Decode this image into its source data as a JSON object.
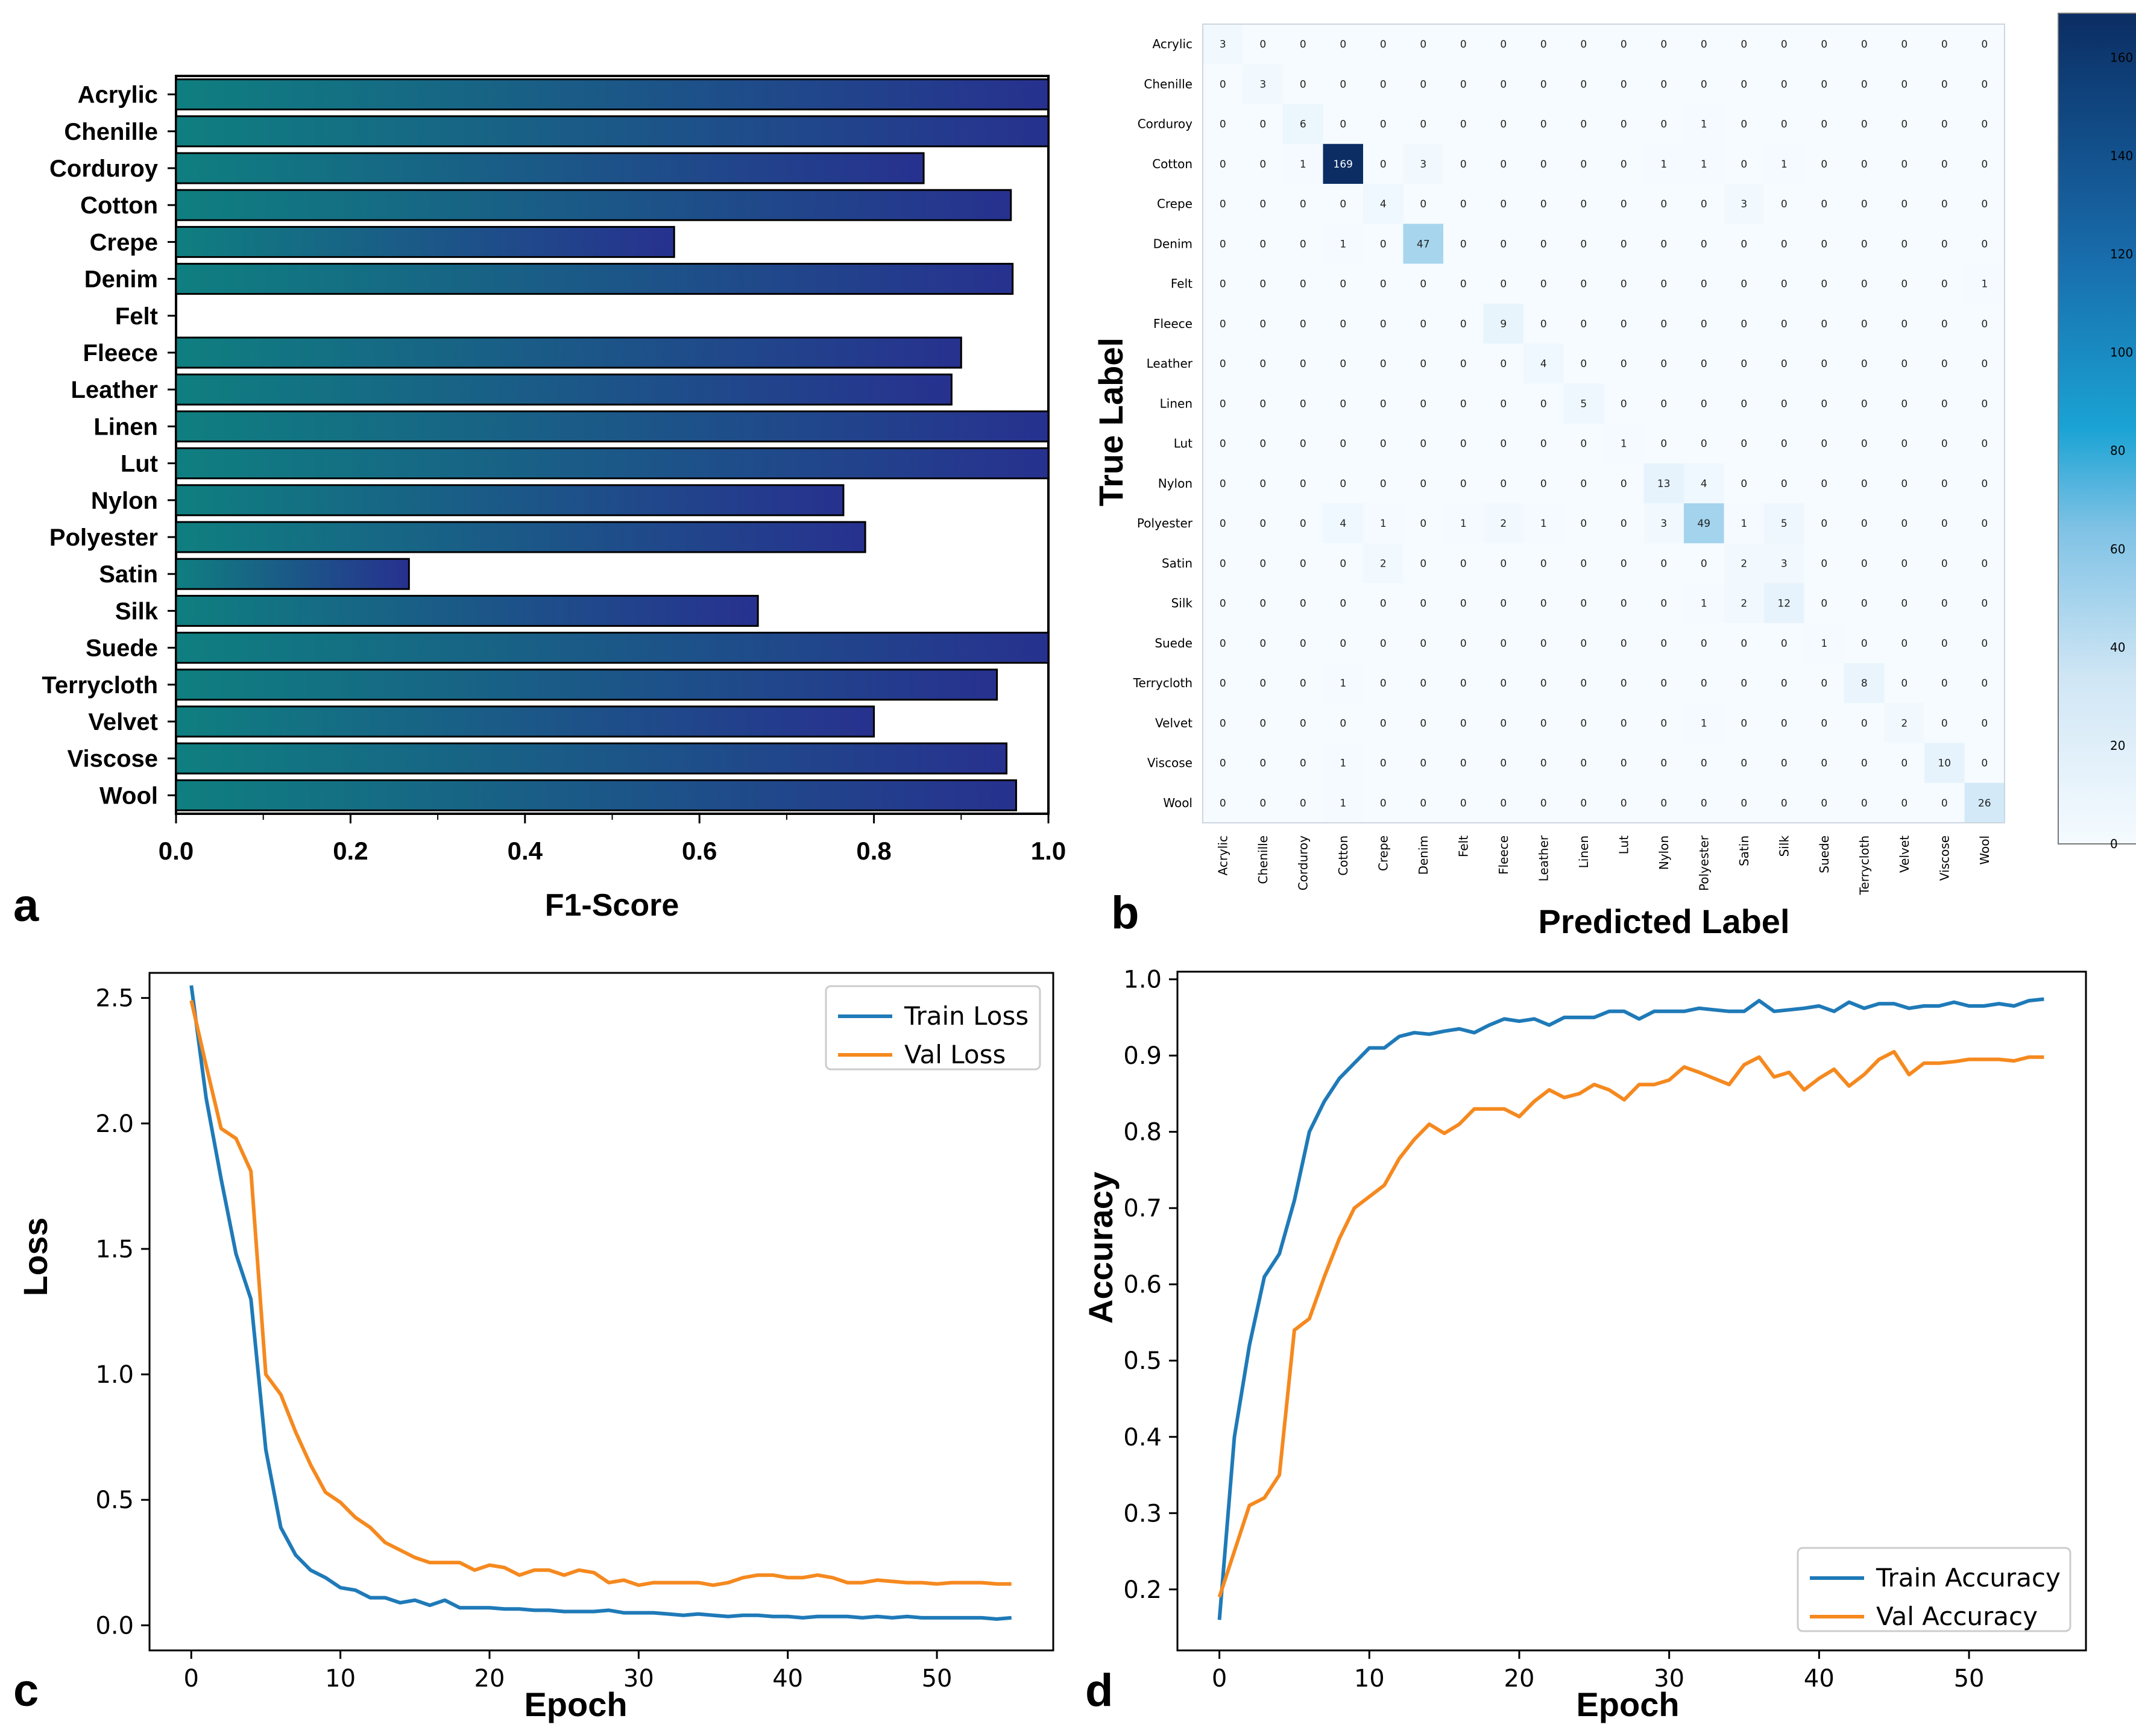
{
  "panel_letters": [
    "a",
    "b",
    "c",
    "d"
  ],
  "colors": {
    "bar_start": "#0f7f80",
    "bar_end": "#27318f",
    "train": "#1f7ab8",
    "val": "#f5891f",
    "cm_low": "#f5fbff",
    "cm_mid": "#1aa3d4",
    "cm_high": "#0b2d63"
  },
  "chart_data": [
    {
      "id": "a",
      "type": "bar",
      "orientation": "horizontal",
      "title": "",
      "xlabel": "F1-Score",
      "ylabel": "",
      "xlim": [
        0,
        1.0
      ],
      "xticks": [
        "0.0",
        "0.2",
        "0.4",
        "0.6",
        "0.8",
        "1.0"
      ],
      "categories": [
        "Acrylic",
        "Chenille",
        "Corduroy",
        "Cotton",
        "Crepe",
        "Denim",
        "Felt",
        "Fleece",
        "Leather",
        "Linen",
        "Lut",
        "Nylon",
        "Polyester",
        "Satin",
        "Silk",
        "Suede",
        "Terrycloth",
        "Velvet",
        "Viscose",
        "Wool"
      ],
      "values": [
        1.0,
        1.0,
        0.857,
        0.957,
        0.571,
        0.959,
        0.0,
        0.9,
        0.889,
        1.0,
        1.0,
        0.765,
        0.79,
        0.267,
        0.667,
        1.0,
        0.941,
        0.8,
        0.952,
        0.963
      ]
    },
    {
      "id": "b",
      "type": "heatmap",
      "title": "",
      "xlabel": "Predicted Label",
      "ylabel": "True Label",
      "labels": [
        "Acrylic",
        "Chenille",
        "Corduroy",
        "Cotton",
        "Crepe",
        "Denim",
        "Felt",
        "Fleece",
        "Leather",
        "Linen",
        "Lut",
        "Nylon",
        "Polyester",
        "Satin",
        "Silk",
        "Suede",
        "Terrycloth",
        "Velvet",
        "Viscose",
        "Wool"
      ],
      "col_labels": [
        "Acrylic",
        "Chenille",
        "Corduroy",
        "Cotton",
        "Crepe",
        "Denim",
        "Felt",
        "Fleece",
        "Leather",
        "Linen",
        "Lut",
        "Nylon",
        "Polyester",
        "Satin",
        "Silk",
        "Suede",
        "Terrycloth",
        "Velvet",
        "Viscose",
        "Wool"
      ],
      "matrix": [
        [
          3,
          0,
          0,
          0,
          0,
          0,
          0,
          0,
          0,
          0,
          0,
          0,
          0,
          0,
          0,
          0,
          0,
          0,
          0,
          0
        ],
        [
          0,
          3,
          0,
          0,
          0,
          0,
          0,
          0,
          0,
          0,
          0,
          0,
          0,
          0,
          0,
          0,
          0,
          0,
          0,
          0
        ],
        [
          0,
          0,
          6,
          0,
          0,
          0,
          0,
          0,
          0,
          0,
          0,
          0,
          1,
          0,
          0,
          0,
          0,
          0,
          0,
          0
        ],
        [
          0,
          0,
          1,
          169,
          0,
          3,
          0,
          0,
          0,
          0,
          0,
          1,
          1,
          0,
          1,
          0,
          0,
          0,
          0,
          0
        ],
        [
          0,
          0,
          0,
          0,
          4,
          0,
          0,
          0,
          0,
          0,
          0,
          0,
          0,
          3,
          0,
          0,
          0,
          0,
          0,
          0
        ],
        [
          0,
          0,
          0,
          1,
          0,
          47,
          0,
          0,
          0,
          0,
          0,
          0,
          0,
          0,
          0,
          0,
          0,
          0,
          0,
          0
        ],
        [
          0,
          0,
          0,
          0,
          0,
          0,
          0,
          0,
          0,
          0,
          0,
          0,
          0,
          0,
          0,
          0,
          0,
          0,
          0,
          1
        ],
        [
          0,
          0,
          0,
          0,
          0,
          0,
          0,
          9,
          0,
          0,
          0,
          0,
          0,
          0,
          0,
          0,
          0,
          0,
          0,
          0
        ],
        [
          0,
          0,
          0,
          0,
          0,
          0,
          0,
          0,
          4,
          0,
          0,
          0,
          0,
          0,
          0,
          0,
          0,
          0,
          0,
          0
        ],
        [
          0,
          0,
          0,
          0,
          0,
          0,
          0,
          0,
          0,
          5,
          0,
          0,
          0,
          0,
          0,
          0,
          0,
          0,
          0,
          0
        ],
        [
          0,
          0,
          0,
          0,
          0,
          0,
          0,
          0,
          0,
          0,
          1,
          0,
          0,
          0,
          0,
          0,
          0,
          0,
          0,
          0
        ],
        [
          0,
          0,
          0,
          0,
          0,
          0,
          0,
          0,
          0,
          0,
          0,
          13,
          4,
          0,
          0,
          0,
          0,
          0,
          0,
          0
        ],
        [
          0,
          0,
          0,
          4,
          1,
          0,
          1,
          2,
          1,
          0,
          0,
          3,
          49,
          1,
          5,
          0,
          0,
          0,
          0,
          0
        ],
        [
          0,
          0,
          0,
          0,
          2,
          0,
          0,
          0,
          0,
          0,
          0,
          0,
          0,
          2,
          3,
          0,
          0,
          0,
          0,
          0
        ],
        [
          0,
          0,
          0,
          0,
          0,
          0,
          0,
          0,
          0,
          0,
          0,
          0,
          1,
          2,
          12,
          0,
          0,
          0,
          0,
          0
        ],
        [
          0,
          0,
          0,
          0,
          0,
          0,
          0,
          0,
          0,
          0,
          0,
          0,
          0,
          0,
          0,
          1,
          0,
          0,
          0,
          0
        ],
        [
          0,
          0,
          0,
          1,
          0,
          0,
          0,
          0,
          0,
          0,
          0,
          0,
          0,
          0,
          0,
          0,
          8,
          0,
          0,
          0
        ],
        [
          0,
          0,
          0,
          0,
          0,
          0,
          0,
          0,
          0,
          0,
          0,
          0,
          1,
          0,
          0,
          0,
          0,
          2,
          0,
          0
        ],
        [
          0,
          0,
          0,
          1,
          0,
          0,
          0,
          0,
          0,
          0,
          0,
          0,
          0,
          0,
          0,
          0,
          0,
          0,
          10,
          0
        ],
        [
          0,
          0,
          0,
          1,
          0,
          0,
          0,
          0,
          0,
          0,
          0,
          0,
          0,
          0,
          0,
          0,
          0,
          0,
          0,
          26
        ]
      ],
      "colorbar": {
        "range": [
          0,
          169
        ],
        "ticks": [
          0,
          20,
          40,
          60,
          80,
          100,
          120,
          140,
          160
        ]
      }
    },
    {
      "id": "c",
      "type": "line",
      "title": "",
      "xlabel": "Epoch",
      "ylabel": "Loss",
      "xlim": [
        -2.8,
        57.8
      ],
      "ylim": [
        -0.1,
        2.6
      ],
      "xticks": [
        0,
        10,
        20,
        30,
        40,
        50
      ],
      "yticks": [
        "0.0",
        "0.5",
        "1.0",
        "1.5",
        "2.0",
        "2.5"
      ],
      "legend": "top-right",
      "series": [
        {
          "name": "Train Loss",
          "color": "#1f7ab8",
          "values": [
            2.55,
            2.1,
            1.78,
            1.48,
            1.3,
            0.7,
            0.39,
            0.28,
            0.22,
            0.19,
            0.15,
            0.14,
            0.11,
            0.11,
            0.09,
            0.1,
            0.08,
            0.1,
            0.07,
            0.07,
            0.07,
            0.065,
            0.065,
            0.06,
            0.06,
            0.055,
            0.055,
            0.055,
            0.06,
            0.05,
            0.05,
            0.05,
            0.045,
            0.04,
            0.045,
            0.04,
            0.035,
            0.04,
            0.04,
            0.035,
            0.035,
            0.03,
            0.035,
            0.035,
            0.035,
            0.03,
            0.035,
            0.03,
            0.035,
            0.03,
            0.03,
            0.03,
            0.03,
            0.03,
            0.025,
            0.03
          ]
        },
        {
          "name": "Val Loss",
          "color": "#f5891f",
          "values": [
            2.49,
            2.23,
            1.98,
            1.94,
            1.81,
            1.0,
            0.92,
            0.77,
            0.64,
            0.53,
            0.49,
            0.43,
            0.39,
            0.33,
            0.3,
            0.27,
            0.25,
            0.25,
            0.25,
            0.22,
            0.24,
            0.23,
            0.2,
            0.22,
            0.22,
            0.2,
            0.22,
            0.21,
            0.17,
            0.18,
            0.16,
            0.17,
            0.17,
            0.17,
            0.17,
            0.16,
            0.17,
            0.19,
            0.2,
            0.2,
            0.19,
            0.19,
            0.2,
            0.19,
            0.17,
            0.17,
            0.18,
            0.175,
            0.17,
            0.17,
            0.165,
            0.17,
            0.17,
            0.17,
            0.165,
            0.165
          ]
        }
      ]
    },
    {
      "id": "d",
      "type": "line",
      "title": "",
      "xlabel": "Epoch",
      "ylabel": "Accuracy",
      "xlim": [
        -2.8,
        57.8
      ],
      "ylim": [
        0.12,
        1.01
      ],
      "xticks": [
        0,
        10,
        20,
        30,
        40,
        50
      ],
      "yticks": [
        "0.2",
        "0.3",
        "0.4",
        "0.5",
        "0.6",
        "0.7",
        "0.8",
        "0.9",
        "1.0"
      ],
      "legend": "bottom-right",
      "series": [
        {
          "name": "Train Accuracy",
          "color": "#1f7ab8",
          "values": [
            0.16,
            0.4,
            0.52,
            0.61,
            0.64,
            0.71,
            0.8,
            0.84,
            0.87,
            0.89,
            0.91,
            0.91,
            0.925,
            0.93,
            0.928,
            0.932,
            0.935,
            0.93,
            0.94,
            0.948,
            0.945,
            0.948,
            0.94,
            0.95,
            0.95,
            0.95,
            0.958,
            0.958,
            0.948,
            0.958,
            0.958,
            0.958,
            0.962,
            0.96,
            0.958,
            0.958,
            0.972,
            0.958,
            0.96,
            0.962,
            0.965,
            0.958,
            0.97,
            0.962,
            0.968,
            0.968,
            0.962,
            0.965,
            0.965,
            0.97,
            0.965,
            0.965,
            0.968,
            0.965,
            0.972,
            0.974
          ]
        },
        {
          "name": "Val Accuracy",
          "color": "#f5891f",
          "values": [
            0.19,
            0.25,
            0.31,
            0.32,
            0.35,
            0.54,
            0.555,
            0.61,
            0.66,
            0.7,
            0.715,
            0.73,
            0.765,
            0.79,
            0.81,
            0.798,
            0.81,
            0.83,
            0.83,
            0.83,
            0.82,
            0.84,
            0.855,
            0.845,
            0.85,
            0.862,
            0.855,
            0.842,
            0.862,
            0.862,
            0.868,
            0.885,
            0.878,
            0.87,
            0.862,
            0.888,
            0.898,
            0.872,
            0.878,
            0.855,
            0.87,
            0.882,
            0.86,
            0.875,
            0.895,
            0.905,
            0.875,
            0.89,
            0.89,
            0.892,
            0.895,
            0.895,
            0.895,
            0.893,
            0.898,
            0.898
          ]
        }
      ]
    }
  ]
}
